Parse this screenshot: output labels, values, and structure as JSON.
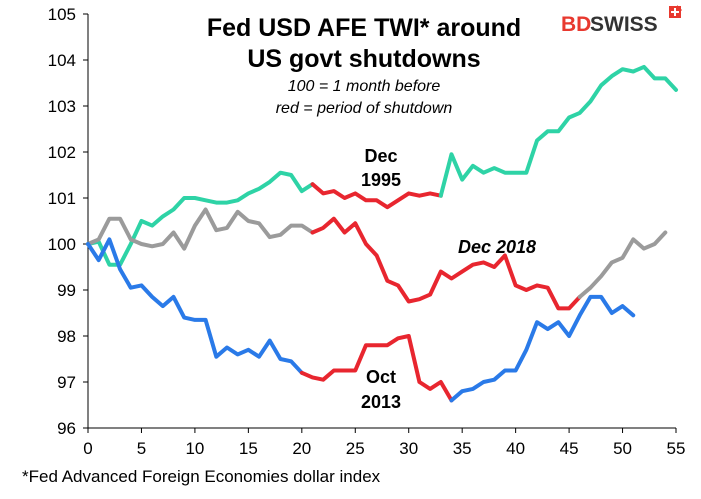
{
  "chart_data": {
    "type": "line",
    "title_line1": "Fed USD AFE TWI* around",
    "title_line2": "US govt shutdowns",
    "subtitle_line1": "100 = 1 month before",
    "subtitle_line2": "red = period of shutdown",
    "footnote": "*Fed Advanced Foreign Economies dollar index",
    "logo": {
      "part1": "BD",
      "part2": "SWISS",
      "color1": "#e8392f",
      "color2": "#333333"
    },
    "xlim": [
      0,
      55
    ],
    "ylim": [
      96,
      105
    ],
    "x_ticks": [
      0,
      5,
      10,
      15,
      20,
      25,
      30,
      35,
      40,
      45,
      50,
      55
    ],
    "y_ticks": [
      96,
      97,
      98,
      99,
      100,
      101,
      102,
      103,
      104,
      105
    ],
    "shutdown_color": "#e8262f",
    "annotations": [
      {
        "id": "dec1995",
        "lines": [
          "Dec",
          "1995"
        ],
        "italic": false
      },
      {
        "id": "dec2018",
        "lines": [
          "Dec 2018"
        ],
        "italic": true
      },
      {
        "id": "oct2013",
        "lines": [
          "Oct",
          "2013"
        ],
        "italic": false
      }
    ],
    "series": [
      {
        "id": "dec1995",
        "color": "#2ed3a6",
        "shutdown_range": [
          21,
          33
        ],
        "values": [
          100.0,
          100.05,
          99.55,
          99.55,
          100.0,
          100.5,
          100.4,
          100.6,
          100.75,
          101.0,
          101.0,
          100.95,
          100.9,
          100.9,
          100.95,
          101.1,
          101.2,
          101.35,
          101.55,
          101.5,
          101.15,
          101.3,
          101.1,
          101.15,
          101.0,
          101.1,
          100.95,
          100.95,
          100.8,
          100.95,
          101.1,
          101.05,
          101.1,
          101.05,
          101.95,
          101.4,
          101.7,
          101.55,
          101.65,
          101.55,
          101.55,
          101.55,
          102.25,
          102.45,
          102.45,
          102.75,
          102.85,
          103.1,
          103.45,
          103.65,
          103.8,
          103.75,
          103.85,
          103.6,
          103.6,
          103.35
        ]
      },
      {
        "id": "dec2018",
        "color": "#9b9b9b",
        "shutdown_range": [
          21,
          46
        ],
        "values": [
          100.0,
          100.1,
          100.55,
          100.55,
          100.1,
          100.0,
          99.95,
          100.0,
          100.25,
          99.9,
          100.4,
          100.75,
          100.3,
          100.35,
          100.7,
          100.5,
          100.45,
          100.15,
          100.2,
          100.4,
          100.4,
          100.25,
          100.35,
          100.55,
          100.25,
          100.45,
          100.0,
          99.75,
          99.2,
          99.1,
          98.75,
          98.8,
          98.9,
          99.4,
          99.25,
          99.4,
          99.55,
          99.6,
          99.5,
          99.75,
          99.1,
          99.0,
          99.1,
          99.05,
          98.6,
          98.6,
          98.85,
          99.05,
          99.3,
          99.6,
          99.7,
          100.1,
          99.9,
          100.0,
          100.25
        ]
      },
      {
        "id": "oct2013",
        "color": "#2a7ae8",
        "shutdown_range": [
          20,
          34
        ],
        "values": [
          100.0,
          99.65,
          100.1,
          99.45,
          99.05,
          99.1,
          98.85,
          98.65,
          98.85,
          98.4,
          98.35,
          98.35,
          97.55,
          97.75,
          97.6,
          97.7,
          97.55,
          97.9,
          97.5,
          97.45,
          97.2,
          97.1,
          97.05,
          97.25,
          97.25,
          97.25,
          97.8,
          97.8,
          97.8,
          97.95,
          98.0,
          97.0,
          96.85,
          97.0,
          96.6,
          96.8,
          96.85,
          97.0,
          97.05,
          97.25,
          97.25,
          97.7,
          98.3,
          98.15,
          98.3,
          98.0,
          98.45,
          98.85,
          98.85,
          98.5,
          98.65,
          98.45
        ]
      }
    ]
  }
}
